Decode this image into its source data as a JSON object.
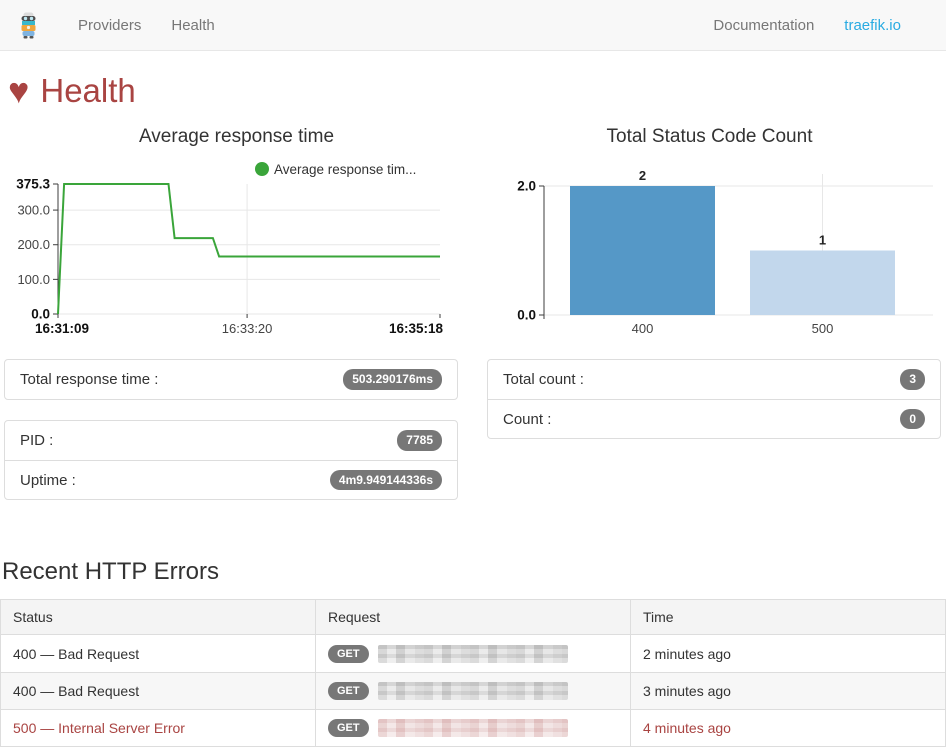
{
  "colors": {
    "accent_red": "#a94442",
    "link_blue": "#29abe2",
    "line_green": "#3aa53a",
    "bar_400": "#5598c7",
    "bar_500": "#c2d7ec",
    "badge_gray": "#777777",
    "nav_bg": "#f8f8f8"
  },
  "icons": {
    "heart": "♥",
    "logo": "traefik-mascot"
  },
  "nav": {
    "items": [
      {
        "label": "Providers"
      },
      {
        "label": "Health"
      }
    ],
    "right": [
      {
        "label": "Documentation"
      },
      {
        "label": "traefik.io"
      }
    ]
  },
  "page": {
    "title": "Health"
  },
  "chart_data": [
    {
      "type": "line",
      "title": "Average response time",
      "legend": "Average response tim...",
      "line_color": "#3aa53a",
      "ylim": [
        0,
        375.3
      ],
      "y_ticks": [
        {
          "label": "375.3",
          "value": 375.3,
          "bold": true
        },
        {
          "label": "300.0",
          "value": 300,
          "bold": false
        },
        {
          "label": "200.0",
          "value": 200,
          "bold": false
        },
        {
          "label": "100.0",
          "value": 100,
          "bold": false
        },
        {
          "label": "0.0",
          "value": 0,
          "bold": true
        }
      ],
      "x_ticks": [
        {
          "label": "16:31:09",
          "pos": 0,
          "bold": true,
          "grid": false
        },
        {
          "label": "16:33:20",
          "pos": 0.495,
          "bold": false,
          "grid": true
        },
        {
          "label": "16:35:18",
          "pos": 1,
          "bold": true,
          "grid": false
        }
      ],
      "x_domain_seconds": [
        0,
        249
      ],
      "points": [
        [
          0,
          0
        ],
        [
          4,
          375.3
        ],
        [
          72,
          375.3
        ],
        [
          76,
          219
        ],
        [
          101,
          219
        ],
        [
          105,
          166
        ],
        [
          249,
          166
        ]
      ],
      "grid": true,
      "legend_position": "top-right"
    },
    {
      "type": "bar",
      "title": "Total Status Code Count",
      "categories": [
        "400",
        "500"
      ],
      "values": [
        2,
        1
      ],
      "value_labels": [
        "2",
        "1"
      ],
      "bar_colors": [
        "#5598c7",
        "#c2d7ec"
      ],
      "ylim": [
        0,
        2
      ],
      "y_ticks": [
        {
          "label": "2.0",
          "value": 2,
          "bold": true
        },
        {
          "label": "0.0",
          "value": 0,
          "bold": true
        }
      ],
      "grid_category_index": 1,
      "legend_position": "none"
    }
  ],
  "panels": {
    "total_response_time": {
      "label": "Total response time :",
      "value": "503.290176ms"
    },
    "pid": {
      "label": "PID :",
      "value": "7785"
    },
    "uptime": {
      "label": "Uptime :",
      "value": "4m9.949144336s"
    },
    "total_count": {
      "label": "Total count :",
      "value": "3"
    },
    "count": {
      "label": "Count :",
      "value": "0"
    }
  },
  "errors": {
    "heading": "Recent HTTP Errors",
    "columns": [
      "Status",
      "Request",
      "Time"
    ],
    "rows": [
      {
        "status": "400 — Bad Request",
        "method": "GET",
        "time": "2 minutes ago",
        "error": false
      },
      {
        "status": "400 — Bad Request",
        "method": "GET",
        "time": "3 minutes ago",
        "error": false
      },
      {
        "status": "500 — Internal Server Error",
        "method": "GET",
        "time": "4 minutes ago",
        "error": true
      }
    ]
  }
}
